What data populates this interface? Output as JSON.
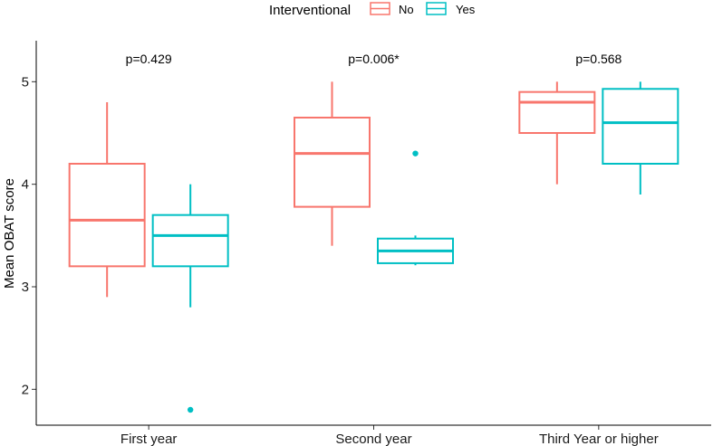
{
  "chart_data": {
    "type": "boxplot",
    "title": "",
    "xlabel": "",
    "ylabel": "Mean OBAT score",
    "ylim": [
      1.65,
      5.4
    ],
    "yticks": [
      2,
      3,
      4,
      5
    ],
    "categories": [
      "First year",
      "Second year",
      "Third Year or higher"
    ],
    "legend": {
      "title": "Interventional",
      "position": "top",
      "entries": [
        {
          "name": "No",
          "color": "#F8766D"
        },
        {
          "name": "Yes",
          "color": "#00BFC4"
        }
      ]
    },
    "series": [
      {
        "name": "No",
        "color": "#F8766D",
        "boxes": [
          {
            "min": 2.9,
            "q1": 3.2,
            "median": 3.65,
            "q3": 4.2,
            "max": 4.8,
            "outliers": []
          },
          {
            "min": 3.4,
            "q1": 3.78,
            "median": 4.3,
            "q3": 4.65,
            "max": 5.0,
            "outliers": []
          },
          {
            "min": 4.0,
            "q1": 4.5,
            "median": 4.8,
            "q3": 4.9,
            "max": 5.0,
            "outliers": []
          }
        ]
      },
      {
        "name": "Yes",
        "color": "#00BFC4",
        "boxes": [
          {
            "min": 2.8,
            "q1": 3.2,
            "median": 3.5,
            "q3": 3.7,
            "max": 4.0,
            "outliers": [
              1.8
            ]
          },
          {
            "min": 3.21,
            "q1": 3.23,
            "median": 3.35,
            "q3": 3.47,
            "max": 3.5,
            "outliers": [
              4.3
            ]
          },
          {
            "min": 3.9,
            "q1": 4.2,
            "median": 4.6,
            "q3": 4.93,
            "max": 5.0,
            "outliers": []
          }
        ]
      }
    ],
    "annotations": [
      "p=0.429",
      "p=0.006*",
      "p=0.568"
    ]
  }
}
